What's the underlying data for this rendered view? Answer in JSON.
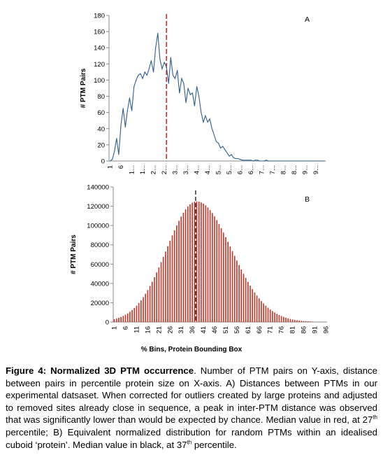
{
  "chart_data": [
    {
      "type": "line",
      "panel_label": "A",
      "ylabel": "# PTM Pairs",
      "ylim": [
        0,
        180
      ],
      "yticks": [
        0,
        20,
        40,
        60,
        80,
        100,
        120,
        140,
        160,
        180
      ],
      "xtick_labels": [
        "1",
        "6",
        "1...",
        "1...",
        "2...",
        "2...",
        "3...",
        "3...",
        "4...",
        "4...",
        "5...",
        "5...",
        "6...",
        "6...",
        "7...",
        "7...",
        "8...",
        "8...",
        "9...",
        "9..."
      ],
      "color": "#2e5f8f",
      "median_line": {
        "bin": 27,
        "color": "#c00000"
      },
      "x": [
        1,
        2,
        3,
        4,
        5,
        6,
        7,
        8,
        9,
        10,
        11,
        12,
        13,
        14,
        15,
        16,
        17,
        18,
        19,
        20,
        21,
        22,
        23,
        24,
        25,
        26,
        27,
        28,
        29,
        30,
        31,
        32,
        33,
        34,
        35,
        36,
        37,
        38,
        39,
        40,
        41,
        42,
        43,
        44,
        45,
        46,
        47,
        48,
        49,
        50,
        51,
        52,
        53,
        54,
        55,
        56,
        57,
        58,
        59,
        60,
        61,
        62,
        63,
        64,
        65,
        66,
        67,
        68,
        69,
        70,
        71,
        72,
        73,
        74,
        75,
        76,
        77,
        78,
        79,
        80,
        81,
        82,
        83,
        84,
        85,
        86,
        87,
        88,
        89,
        90,
        91,
        92,
        93,
        94,
        95,
        96,
        97,
        98,
        99,
        100
      ],
      "values": [
        0,
        2,
        12,
        28,
        8,
        45,
        65,
        42,
        62,
        78,
        62,
        92,
        100,
        106,
        108,
        102,
        110,
        106,
        114,
        124,
        110,
        140,
        158,
        126,
        114,
        122,
        116,
        96,
        128,
        106,
        102,
        112,
        84,
        102,
        96,
        72,
        90,
        82,
        84,
        68,
        92,
        80,
        60,
        48,
        56,
        48,
        52,
        40,
        32,
        24,
        22,
        16,
        18,
        14,
        10,
        6,
        8,
        4,
        3,
        3,
        2,
        1,
        1,
        1,
        1,
        1,
        0,
        1,
        1,
        0,
        0,
        0,
        1,
        0,
        0,
        0,
        0,
        0,
        0,
        0,
        0,
        0,
        0,
        0,
        0,
        0,
        0,
        0,
        0,
        0,
        0,
        0,
        0,
        0,
        0,
        0,
        0,
        0,
        0,
        0
      ]
    },
    {
      "type": "bar",
      "panel_label": "B",
      "ylabel": "# PTM Pairs",
      "xlabel": "% Bins, Protein Bounding Box",
      "ylim": [
        0,
        140000
      ],
      "yticks": [
        "0",
        "20000",
        "40000",
        "60000",
        "80000",
        "100000",
        "120000",
        "140000"
      ],
      "xtick_labels": [
        "1",
        "6",
        "11",
        "16",
        "21",
        "26",
        "31",
        "36",
        "41",
        "46",
        "51",
        "56",
        "61",
        "66",
        "71",
        "76",
        "81",
        "86",
        "91",
        "96"
      ],
      "color": "#c0392b",
      "median_line": {
        "bin": 37,
        "color": "#000000"
      },
      "distribution": {
        "n_bins": 96,
        "peak_bin": 38,
        "peak_value": 125000,
        "sd_left_bins": 13.5,
        "sd_right_bins": 15.5,
        "cutoff_bin": 90
      }
    }
  ],
  "caption": {
    "title": "Figure 4: Normalized 3D PTM occurrence",
    "p1": ". Number of PTM pairs on Y-axis, distance between pairs in percentile protein size on X-axis. A) Distances between PTMs in our experimental datsaset. When corrected for outliers created by large proteins and adjusted to removed sites already close in sequence, a peak in inter-PTM distance was observed that was significantly lower than would be expected by chance. Median value in red, at 27",
    "sup1": "th",
    "p2": " percentile; B) Equivalent normalized distribution for random PTMs within an idealised cuboid ‘protein’. Median value in black, at 37",
    "sup2": "th",
    "p3": " percentile."
  }
}
